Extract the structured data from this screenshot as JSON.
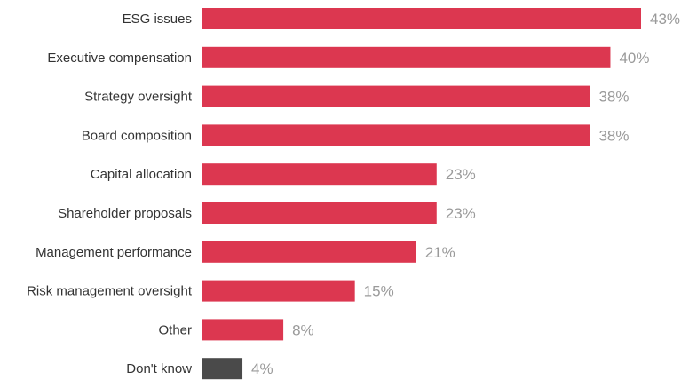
{
  "chart_data": {
    "type": "bar",
    "orientation": "horizontal",
    "categories": [
      "ESG issues",
      "Executive compensation",
      "Strategy oversight",
      "Board composition",
      "Capital allocation",
      "Shareholder proposals",
      "Management performance",
      "Risk management oversight",
      "Other",
      "Don't know"
    ],
    "values": [
      43,
      40,
      38,
      38,
      23,
      23,
      21,
      15,
      8,
      4
    ],
    "value_labels": [
      "43%",
      "40%",
      "38%",
      "38%",
      "23%",
      "23%",
      "21%",
      "15%",
      "8%",
      "4%"
    ],
    "title": "",
    "xlabel": "",
    "ylabel": "",
    "xlim": [
      0,
      43
    ],
    "grid": false,
    "colors": {
      "bar": "#dc3750",
      "bar_dont_know": "#4a4a4a",
      "category_text": "#333333",
      "value_text": "#9a9a9a"
    }
  }
}
